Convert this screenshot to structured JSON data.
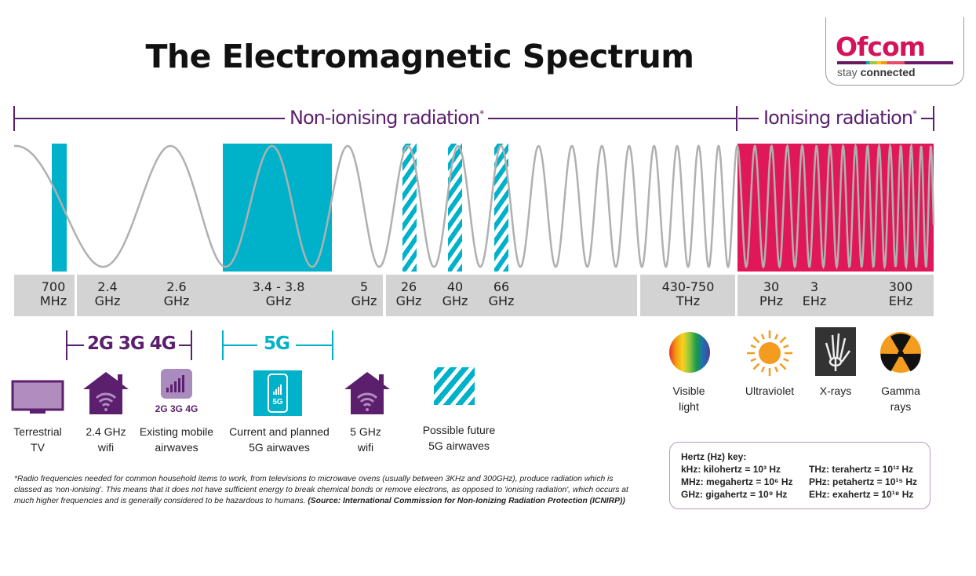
{
  "title": "The Electromagnetic Spectrum",
  "logo": {
    "name": "Ofcom",
    "tagline_light": "stay",
    "tagline_bold": "connected"
  },
  "ranges": {
    "non_ionising": "Non-ionising radiation",
    "ionising": "Ionising radiation",
    "marker": "*"
  },
  "colors": {
    "purple": "#5c1f6e",
    "teal": "#00b2c9",
    "ionising": "#e0185a",
    "label_bar": "#d3d3d3",
    "wave": "#b0b0b0"
  },
  "frequencies": [
    {
      "value": "700",
      "unit": "MHz"
    },
    {
      "value": "2.4",
      "unit": "GHz"
    },
    {
      "value": "2.6",
      "unit": "GHz"
    },
    {
      "value": "3.4 - 3.8",
      "unit": "GHz"
    },
    {
      "value": "5",
      "unit": "GHz"
    },
    {
      "value": "26",
      "unit": "GHz"
    },
    {
      "value": "40",
      "unit": "GHz"
    },
    {
      "value": "66",
      "unit": "GHz"
    },
    {
      "value": "430-750",
      "unit": "THz"
    },
    {
      "value": "30",
      "unit": "PHz"
    },
    {
      "value": "3",
      "unit": "EHz"
    },
    {
      "value": "300",
      "unit": "EHz"
    }
  ],
  "brackets": {
    "mobile": "2G 3G 4G",
    "fiveg": "5G"
  },
  "icons": [
    {
      "icon": "tv-icon",
      "label1": "Terrestrial",
      "label2": "TV"
    },
    {
      "icon": "house-wifi-icon",
      "label1": "2.4 GHz",
      "label2": "wifi"
    },
    {
      "icon": "signal-bars-icon",
      "badge": "2G  3G  4G",
      "label1": "Existing mobile",
      "label2": "airwaves"
    },
    {
      "icon": "phone-5g-icon",
      "badge": "5G",
      "label1": "Current and planned",
      "label2": "5G airwaves"
    },
    {
      "icon": "house-wifi-icon",
      "label1": "5 GHz",
      "label2": "wifi"
    },
    {
      "icon": "hatched-square-icon",
      "label1": "Possible future",
      "label2": "5G airwaves"
    },
    {
      "icon": "rainbow-icon",
      "label1": "Visible",
      "label2": "light"
    },
    {
      "icon": "sun-icon",
      "label1": "Ultraviolet",
      "label2": ""
    },
    {
      "icon": "xray-hand-icon",
      "label1": "X-rays",
      "label2": ""
    },
    {
      "icon": "radiation-icon",
      "label1": "Gamma",
      "label2": "rays"
    }
  ],
  "footnote": {
    "text": "*Radio frequencies needed for common household items to work, from televisions to microwave ovens (usually between 3KHz and 300GHz), produce radiation which is classed as 'non-ionising'. This means that it does not have sufficient energy to break chemical bonds or remove electrons, as opposed to 'ionising radiation', which occurs at much higher frequencies and is generally considered to be hazardous to humans. ",
    "source": "(Source: International Commission for Non-Ionizing Radiation Protection (ICNIRP))"
  },
  "key": {
    "title": "Hertz (Hz) key:",
    "left": [
      "kHz: kilohertz = 10³ Hz",
      "MHz: megahertz = 10⁶ Hz",
      "GHz: gigahertz = 10⁹ Hz"
    ],
    "right": [
      "THz: terahertz = 10¹² Hz",
      "PHz: petahertz = 10¹⁵ Hz",
      "EHz: exahertz = 10¹⁸ Hz"
    ]
  }
}
